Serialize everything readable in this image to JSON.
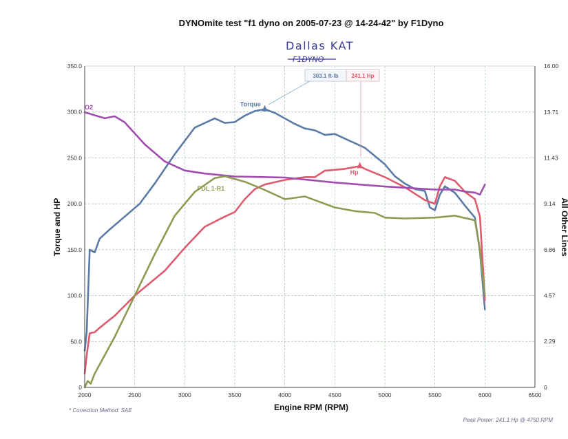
{
  "title": "DYNOmite test \"f1 dyno on 2005-07-23 @ 14-24-42\" by F1Dyno",
  "handwritten": {
    "line1": "Dallas KAT",
    "line2": "F1DYNO"
  },
  "footer": {
    "correction": "* Correction Method: SAE",
    "peak": "Peak Power: 241.1 Hp @ 4750 RPM"
  },
  "callouts": {
    "torque": "303.1 ft-lb",
    "hp": "241.1 Hp"
  },
  "colors": {
    "torque": "#5b7ba6",
    "hp": "#de5a6e",
    "o2": "#a04cae",
    "fdl": "#8e9a52",
    "grid_x": [
      "#a8c4a0",
      "#c8a8c8",
      "#a8c8d8"
    ],
    "grid_y": "#9ec09e"
  },
  "chart_data": {
    "type": "line",
    "title": "DYNOmite test \"f1 dyno on 2005-07-23 @ 14-24-42\" by F1Dyno",
    "xlabel": "Engine RPM (RPM)",
    "ylabel": "Torque and HP",
    "y2label": "All Other Lines",
    "xlim": [
      2000,
      6500
    ],
    "ylim": [
      0,
      350
    ],
    "y2lim": [
      0,
      16
    ],
    "xticks": [
      "2000",
      "2500",
      "3000",
      "3500",
      "4000",
      "4500",
      "5000",
      "5500",
      "6000",
      "6500"
    ],
    "yticks": [
      "0",
      "50.0",
      "100.0",
      "150.0",
      "200.0",
      "250.0",
      "300.0",
      "350.0"
    ],
    "y2ticks": [
      "0",
      "2.29",
      "4.57",
      "6.86",
      "9.14",
      "11.43",
      "13.71",
      "16.00"
    ],
    "series": [
      {
        "name": "Torque",
        "axis": "left",
        "color_key": "torque",
        "x": [
          2000,
          2020,
          2050,
          2100,
          2150,
          2250,
          2400,
          2550,
          2700,
          2900,
          3100,
          3300,
          3400,
          3500,
          3600,
          3700,
          3800,
          3900,
          4000,
          4100,
          4200,
          4300,
          4400,
          4500,
          4600,
          4700,
          4800,
          4900,
          5000,
          5100,
          5200,
          5300,
          5400,
          5450,
          5500,
          5550,
          5600,
          5700,
          5800,
          5900,
          5950,
          6000
        ],
        "values": [
          40,
          60,
          150,
          147,
          162,
          172,
          186,
          200,
          222,
          254,
          283,
          293,
          288,
          289,
          296,
          301,
          303,
          299,
          293,
          287,
          282,
          280,
          275,
          276,
          271,
          266,
          261,
          252,
          243,
          230,
          222,
          216,
          214,
          196,
          193,
          210,
          219,
          212,
          198,
          185,
          148,
          85
        ]
      },
      {
        "name": "Hp",
        "axis": "left",
        "color_key": "hp",
        "x": [
          2000,
          2020,
          2050,
          2100,
          2150,
          2300,
          2500,
          2800,
          3000,
          3200,
          3400,
          3500,
          3600,
          3700,
          3800,
          4000,
          4200,
          4300,
          4400,
          4500,
          4600,
          4700,
          4750,
          4800,
          5000,
          5200,
          5400,
          5500,
          5550,
          5600,
          5700,
          5800,
          5900,
          5950,
          6000
        ],
        "values": [
          15,
          35,
          59,
          60,
          65,
          78,
          100,
          127,
          152,
          175,
          186,
          191,
          205,
          216,
          221,
          226,
          229,
          229,
          236,
          237,
          238,
          240,
          241,
          238,
          229,
          218,
          204,
          200,
          219,
          229,
          225,
          213,
          205,
          186,
          95
        ]
      },
      {
        "name": "O2",
        "axis": "right",
        "color_key": "o2",
        "x": [
          2000,
          2100,
          2200,
          2300,
          2400,
          2600,
          2800,
          3000,
          3200,
          3500,
          4000,
          4500,
          5000,
          5500,
          5700,
          5800,
          5900,
          5950,
          6000
        ],
        "values": [
          13.7,
          13.55,
          13.4,
          13.5,
          13.2,
          12.1,
          11.25,
          10.8,
          10.65,
          10.5,
          10.45,
          10.2,
          10.0,
          9.85,
          9.85,
          9.75,
          9.7,
          9.6,
          10.1
        ]
      },
      {
        "name": "FDL 1-R1",
        "axis": "right",
        "color_key": "fdl",
        "x": [
          2000,
          2030,
          2060,
          2100,
          2200,
          2300,
          2500,
          2700,
          2900,
          3100,
          3300,
          3400,
          3600,
          3800,
          4000,
          4200,
          4300,
          4500,
          4700,
          4900,
          5000,
          5200,
          5500,
          5700,
          5900,
          5950,
          6000
        ],
        "values": null,
        "values_left_scale": [
          0,
          7,
          4,
          15,
          35,
          55,
          100,
          145,
          187,
          213,
          228,
          230,
          224,
          215,
          205,
          208,
          204,
          196,
          192,
          190,
          185,
          184,
          185,
          187,
          182,
          150,
          100
        ]
      }
    ]
  }
}
